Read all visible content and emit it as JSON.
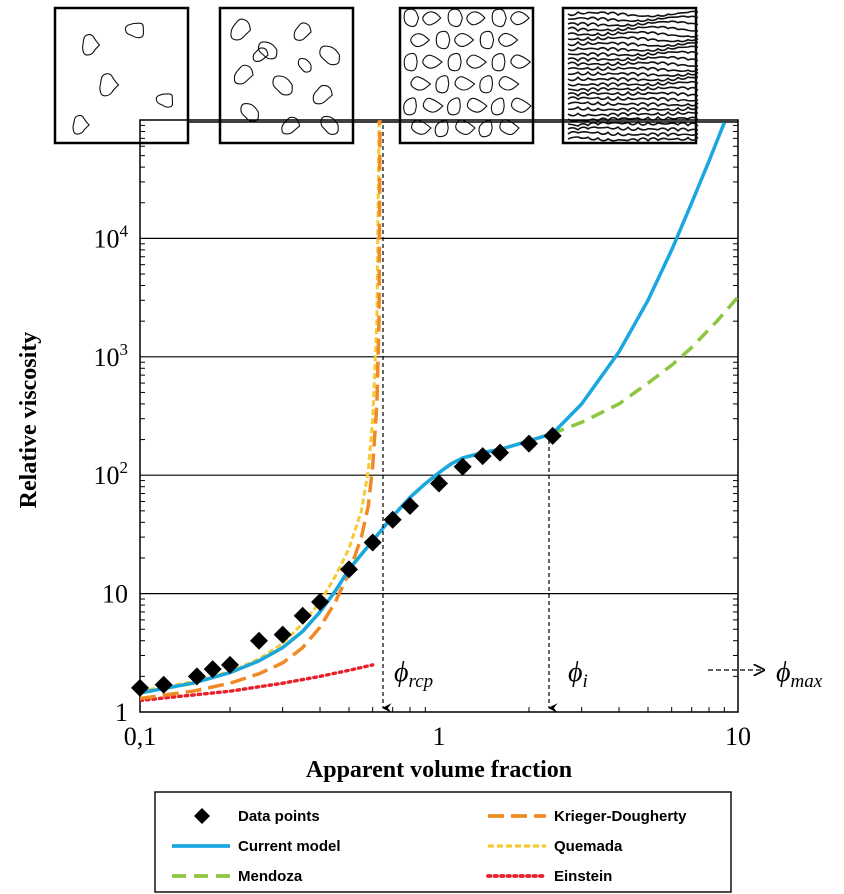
{
  "chart_data": {
    "type": "line",
    "title": "",
    "xlabel": "Apparent volume fraction",
    "ylabel": "Relative viscosity",
    "xscale": "log",
    "yscale": "log",
    "xlim": [
      0.1,
      10
    ],
    "ylim": [
      1,
      100000
    ],
    "grid": "horizontal major lines",
    "legend_position": "bottom",
    "x_tick_labels": [
      "0,1",
      "1",
      "10"
    ],
    "y_tick_labels": [
      "1",
      "10",
      "10^2",
      "10^3",
      "10^4"
    ],
    "annotations": {
      "phi_rcp": {
        "label": "ϕrcp",
        "x": 0.64
      },
      "phi_i": {
        "label": "ϕi",
        "x": 2.4
      },
      "phi_max": {
        "label": "ϕmax"
      }
    },
    "microstructure_panels": [
      "dilute droplets",
      "concentrated droplets",
      "packed polyhedral cells",
      "lamellar / stripe pattern"
    ],
    "series": [
      {
        "name": "Data points",
        "style": "diamond",
        "color": "#000000",
        "points": [
          [
            0.1,
            1.6
          ],
          [
            0.12,
            1.7
          ],
          [
            0.155,
            2.0
          ],
          [
            0.175,
            2.3
          ],
          [
            0.2,
            2.5
          ],
          [
            0.25,
            4.0
          ],
          [
            0.3,
            4.5
          ],
          [
            0.35,
            6.5
          ],
          [
            0.4,
            8.5
          ],
          [
            0.5,
            16
          ],
          [
            0.6,
            27
          ],
          [
            0.7,
            42
          ],
          [
            0.8,
            55
          ],
          [
            1.0,
            85
          ],
          [
            1.2,
            118
          ],
          [
            1.4,
            145
          ],
          [
            1.6,
            155
          ],
          [
            2.0,
            185
          ],
          [
            2.4,
            215
          ]
        ]
      },
      {
        "name": "Current model",
        "style": "solid",
        "color": "#1aa7e0",
        "points": [
          [
            0.1,
            1.45
          ],
          [
            0.15,
            1.75
          ],
          [
            0.2,
            2.15
          ],
          [
            0.25,
            2.7
          ],
          [
            0.3,
            3.5
          ],
          [
            0.35,
            4.8
          ],
          [
            0.4,
            7.0
          ],
          [
            0.45,
            10.5
          ],
          [
            0.5,
            16
          ],
          [
            0.6,
            28
          ],
          [
            0.7,
            45
          ],
          [
            0.8,
            65
          ],
          [
            0.9,
            85
          ],
          [
            1.0,
            105
          ],
          [
            1.1,
            125
          ],
          [
            1.2,
            140
          ],
          [
            1.4,
            155
          ],
          [
            1.6,
            165
          ],
          [
            1.8,
            180
          ],
          [
            2.0,
            195
          ],
          [
            2.4,
            225
          ],
          [
            3.0,
            400
          ],
          [
            4.0,
            1100
          ],
          [
            5.0,
            3000
          ],
          [
            6.0,
            8000
          ],
          [
            7.0,
            20000
          ],
          [
            8.0,
            45000
          ],
          [
            9.0,
            95000
          ]
        ]
      },
      {
        "name": "Mendoza",
        "style": "dash",
        "color": "#8dc63f",
        "points": [
          [
            0.1,
            1.45
          ],
          [
            0.15,
            1.75
          ],
          [
            0.2,
            2.15
          ],
          [
            0.25,
            2.7
          ],
          [
            0.3,
            3.5
          ],
          [
            0.35,
            4.8
          ],
          [
            0.4,
            7.0
          ],
          [
            0.45,
            10.5
          ],
          [
            0.5,
            16
          ],
          [
            0.6,
            28
          ],
          [
            0.7,
            45
          ],
          [
            0.8,
            65
          ],
          [
            0.9,
            85
          ],
          [
            1.0,
            105
          ],
          [
            1.1,
            125
          ],
          [
            1.2,
            140
          ],
          [
            1.4,
            155
          ],
          [
            1.6,
            165
          ],
          [
            1.8,
            180
          ],
          [
            2.0,
            195
          ],
          [
            2.4,
            225
          ],
          [
            3.0,
            280
          ],
          [
            4.0,
            400
          ],
          [
            5.0,
            600
          ],
          [
            6.0,
            850
          ],
          [
            7.0,
            1200
          ],
          [
            8.5,
            2000
          ],
          [
            10.0,
            3200
          ]
        ]
      },
      {
        "name": "Krieger-Dougherty",
        "style": "longdash",
        "color": "#f08a24",
        "points": [
          [
            0.1,
            1.3
          ],
          [
            0.15,
            1.5
          ],
          [
            0.2,
            1.75
          ],
          [
            0.25,
            2.1
          ],
          [
            0.3,
            2.6
          ],
          [
            0.35,
            3.5
          ],
          [
            0.4,
            5.2
          ],
          [
            0.45,
            8.5
          ],
          [
            0.5,
            15
          ],
          [
            0.55,
            30
          ],
          [
            0.58,
            55
          ],
          [
            0.6,
            120
          ],
          [
            0.62,
            400
          ],
          [
            0.63,
            2000
          ],
          [
            0.635,
            100000
          ]
        ]
      },
      {
        "name": "Quemada",
        "style": "shortdash",
        "color": "#f7c934",
        "points": [
          [
            0.1,
            1.5
          ],
          [
            0.15,
            1.8
          ],
          [
            0.2,
            2.2
          ],
          [
            0.25,
            2.8
          ],
          [
            0.3,
            3.8
          ],
          [
            0.35,
            5.6
          ],
          [
            0.4,
            8.5
          ],
          [
            0.45,
            14
          ],
          [
            0.5,
            24
          ],
          [
            0.55,
            50
          ],
          [
            0.58,
            110
          ],
          [
            0.6,
            300
          ],
          [
            0.62,
            2000
          ],
          [
            0.63,
            100000
          ]
        ]
      },
      {
        "name": "Einstein",
        "style": "dot",
        "color": "#e8202a",
        "points": [
          [
            0.1,
            1.25
          ],
          [
            0.2,
            1.5
          ],
          [
            0.3,
            1.75
          ],
          [
            0.4,
            2.0
          ],
          [
            0.5,
            2.25
          ],
          [
            0.6,
            2.5
          ]
        ]
      }
    ]
  }
}
